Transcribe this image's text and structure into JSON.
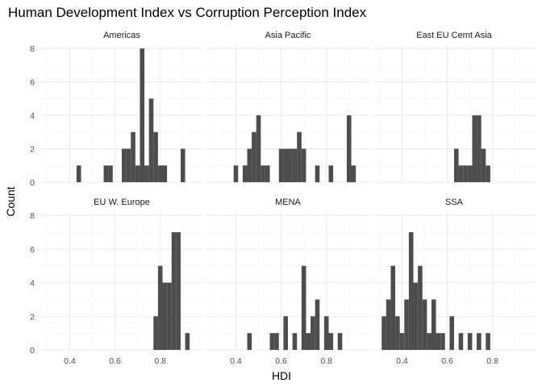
{
  "chart_data": {
    "type": "bar",
    "title": "Human Development Index vs Corruption Perception Index",
    "xlabel": "HDI",
    "ylabel": "Count",
    "xlim": [
      0.27,
      0.99
    ],
    "ylim": [
      0,
      8.2
    ],
    "x_ticks": [
      "0.4",
      "0.6",
      "0.8"
    ],
    "x_tick_values": [
      0.4,
      0.6,
      0.8
    ],
    "y_ticks": [
      "0",
      "2",
      "4",
      "6",
      "8"
    ],
    "y_tick_values": [
      0,
      2,
      4,
      6,
      8
    ],
    "bin_width": 0.02,
    "bar_color": "#4d4d4d",
    "grid": true,
    "panels": [
      {
        "name": "Americas",
        "bins": [
          {
            "x": 0.44,
            "count": 1
          },
          {
            "x": 0.56,
            "count": 1
          },
          {
            "x": 0.58,
            "count": 1
          },
          {
            "x": 0.64,
            "count": 2
          },
          {
            "x": 0.66,
            "count": 2
          },
          {
            "x": 0.68,
            "count": 3
          },
          {
            "x": 0.7,
            "count": 1
          },
          {
            "x": 0.72,
            "count": 8
          },
          {
            "x": 0.74,
            "count": 1
          },
          {
            "x": 0.76,
            "count": 5
          },
          {
            "x": 0.78,
            "count": 3
          },
          {
            "x": 0.8,
            "count": 1
          },
          {
            "x": 0.82,
            "count": 1
          },
          {
            "x": 0.9,
            "count": 2
          }
        ]
      },
      {
        "name": "Asia Pacific",
        "bins": [
          {
            "x": 0.4,
            "count": 1
          },
          {
            "x": 0.44,
            "count": 1
          },
          {
            "x": 0.46,
            "count": 2
          },
          {
            "x": 0.48,
            "count": 3
          },
          {
            "x": 0.5,
            "count": 4
          },
          {
            "x": 0.52,
            "count": 1
          },
          {
            "x": 0.54,
            "count": 1
          },
          {
            "x": 0.6,
            "count": 2
          },
          {
            "x": 0.62,
            "count": 2
          },
          {
            "x": 0.64,
            "count": 2
          },
          {
            "x": 0.66,
            "count": 2
          },
          {
            "x": 0.68,
            "count": 3
          },
          {
            "x": 0.7,
            "count": 2
          },
          {
            "x": 0.76,
            "count": 1
          },
          {
            "x": 0.82,
            "count": 1
          },
          {
            "x": 0.9,
            "count": 4
          },
          {
            "x": 0.92,
            "count": 1
          }
        ]
      },
      {
        "name": "East EU Cemt Asia",
        "bins": [
          {
            "x": 0.64,
            "count": 2
          },
          {
            "x": 0.66,
            "count": 1
          },
          {
            "x": 0.68,
            "count": 1
          },
          {
            "x": 0.7,
            "count": 1
          },
          {
            "x": 0.72,
            "count": 4
          },
          {
            "x": 0.74,
            "count": 4
          },
          {
            "x": 0.76,
            "count": 2
          },
          {
            "x": 0.78,
            "count": 1
          }
        ]
      },
      {
        "name": "EU W. Europe",
        "bins": [
          {
            "x": 0.78,
            "count": 2
          },
          {
            "x": 0.8,
            "count": 5
          },
          {
            "x": 0.82,
            "count": 4
          },
          {
            "x": 0.84,
            "count": 4
          },
          {
            "x": 0.86,
            "count": 7
          },
          {
            "x": 0.88,
            "count": 7
          },
          {
            "x": 0.92,
            "count": 1
          }
        ]
      },
      {
        "name": "MENA",
        "bins": [
          {
            "x": 0.46,
            "count": 1
          },
          {
            "x": 0.56,
            "count": 1
          },
          {
            "x": 0.58,
            "count": 1
          },
          {
            "x": 0.62,
            "count": 2
          },
          {
            "x": 0.66,
            "count": 1
          },
          {
            "x": 0.7,
            "count": 5
          },
          {
            "x": 0.72,
            "count": 1
          },
          {
            "x": 0.74,
            "count": 2
          },
          {
            "x": 0.76,
            "count": 3
          },
          {
            "x": 0.8,
            "count": 2
          },
          {
            "x": 0.82,
            "count": 1
          },
          {
            "x": 0.86,
            "count": 1
          }
        ]
      },
      {
        "name": "SSA",
        "bins": [
          {
            "x": 0.32,
            "count": 2
          },
          {
            "x": 0.34,
            "count": 3
          },
          {
            "x": 0.36,
            "count": 5
          },
          {
            "x": 0.38,
            "count": 2
          },
          {
            "x": 0.4,
            "count": 1
          },
          {
            "x": 0.42,
            "count": 3
          },
          {
            "x": 0.44,
            "count": 7
          },
          {
            "x": 0.46,
            "count": 4
          },
          {
            "x": 0.48,
            "count": 5
          },
          {
            "x": 0.5,
            "count": 3
          },
          {
            "x": 0.52,
            "count": 1
          },
          {
            "x": 0.54,
            "count": 3
          },
          {
            "x": 0.56,
            "count": 1
          },
          {
            "x": 0.58,
            "count": 1
          },
          {
            "x": 0.62,
            "count": 2
          },
          {
            "x": 0.66,
            "count": 1
          },
          {
            "x": 0.7,
            "count": 1
          },
          {
            "x": 0.74,
            "count": 1
          },
          {
            "x": 0.78,
            "count": 1
          }
        ]
      }
    ]
  }
}
